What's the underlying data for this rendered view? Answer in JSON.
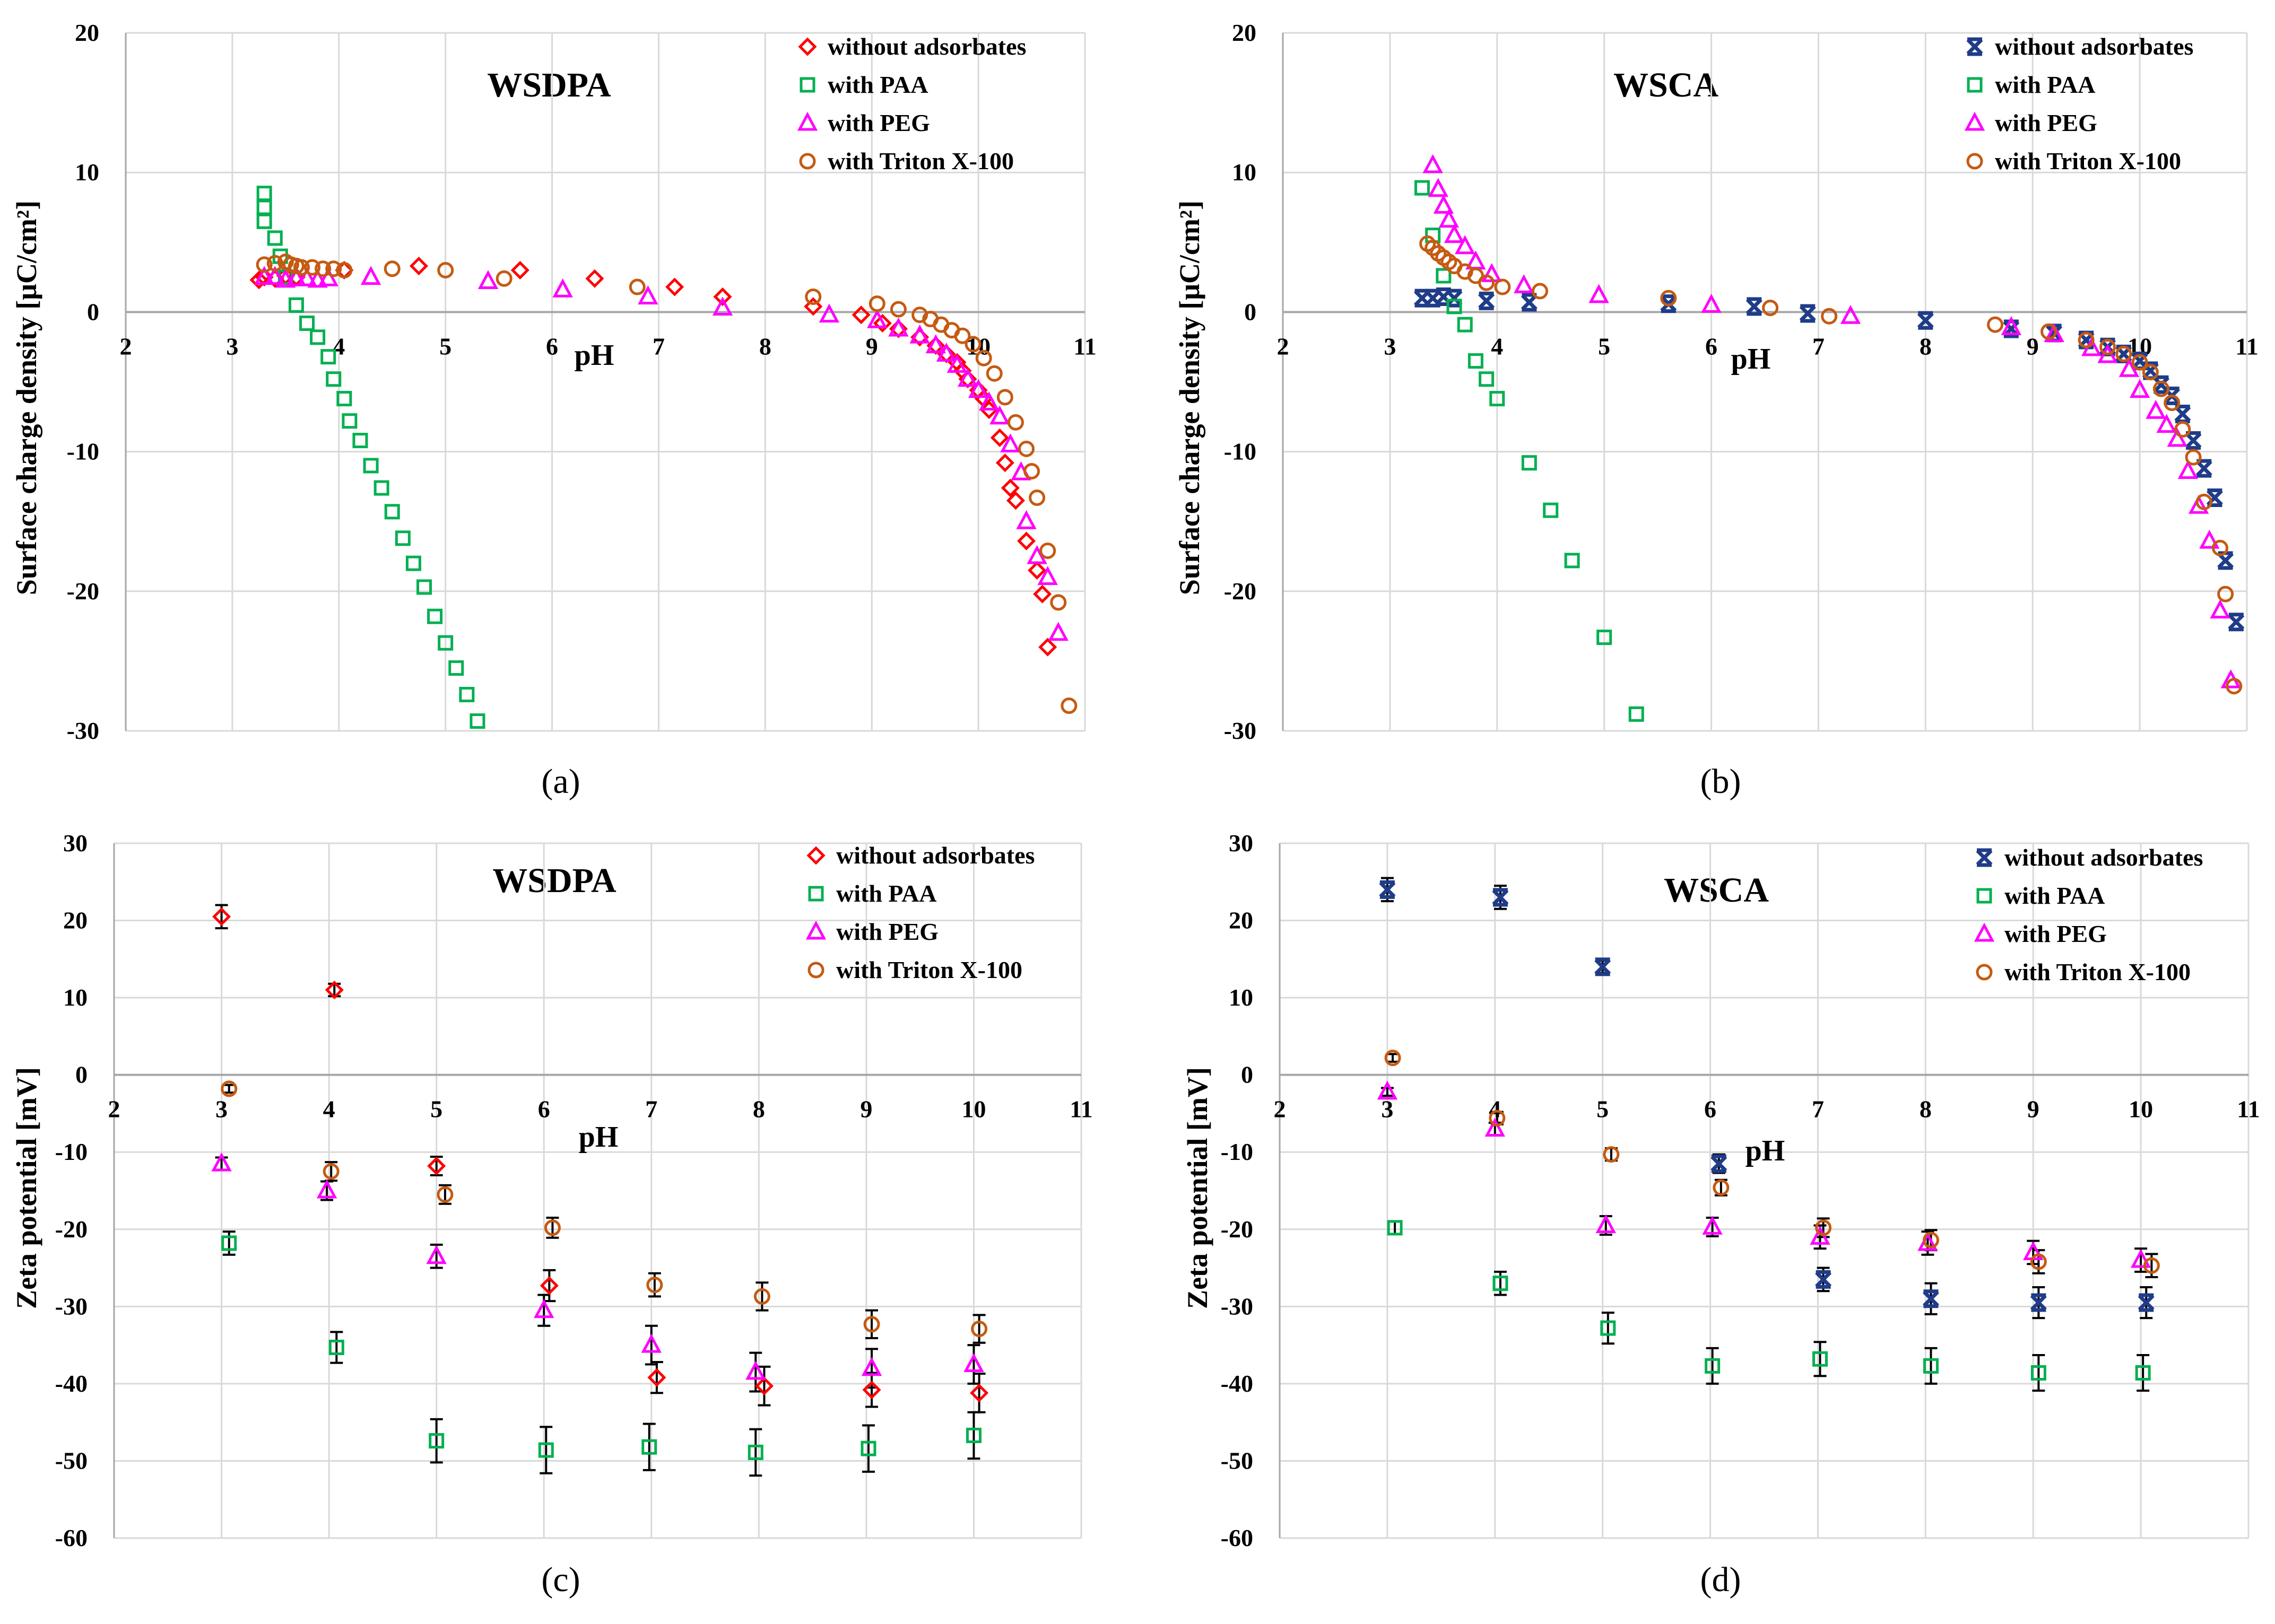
{
  "chart_data": [
    {
      "type": "scatter",
      "panel_label": "(a)",
      "title": "WSDPA",
      "xlabel": "pH",
      "ylabel": "Surface charge density [μC/cm²]",
      "xlim": [
        2,
        11
      ],
      "ylim": [
        -30,
        20
      ],
      "xticks": [
        2,
        3,
        4,
        5,
        6,
        7,
        8,
        9,
        10,
        11
      ],
      "yticks": [
        20,
        10,
        0,
        -10,
        -20,
        -30
      ],
      "grid": true,
      "legend_position": "top-right",
      "series": [
        {
          "name": "without adsorbates",
          "marker": "diamond",
          "color": "#ff0000",
          "x": [
            3.25,
            3.3,
            3.4,
            3.5,
            3.6,
            4.05,
            4.75,
            5.7,
            6.4,
            7.15,
            7.6,
            8.45,
            8.9,
            9.1,
            9.25,
            9.45,
            9.6,
            9.7,
            9.8,
            9.85,
            9.9,
            10.0,
            10.05,
            10.1,
            10.2,
            10.25,
            10.3,
            10.35,
            10.45,
            10.55,
            10.6,
            10.65
          ],
          "y": [
            2.3,
            2.5,
            2.4,
            2.6,
            2.5,
            3.0,
            3.3,
            3.0,
            2.4,
            1.8,
            1.1,
            0.4,
            -0.2,
            -0.8,
            -1.2,
            -1.8,
            -2.4,
            -3.0,
            -3.6,
            -4.2,
            -4.8,
            -5.6,
            -6.2,
            -7.0,
            -9.0,
            -10.8,
            -12.6,
            -13.5,
            -16.4,
            -18.5,
            -20.2,
            -24.0
          ]
        },
        {
          "name": "with PAA",
          "marker": "square",
          "color": "#00b050",
          "x": [
            3.3,
            3.3,
            3.3,
            3.4,
            3.45,
            3.5,
            3.6,
            3.7,
            3.8,
            3.9,
            3.95,
            4.05,
            4.1,
            4.2,
            4.3,
            4.4,
            4.5,
            4.6,
            4.7,
            4.8,
            4.9,
            5.0,
            5.1,
            5.2,
            5.3
          ],
          "y": [
            8.5,
            7.5,
            6.5,
            5.3,
            4.0,
            2.5,
            0.5,
            -0.8,
            -1.8,
            -3.2,
            -4.8,
            -6.2,
            -7.8,
            -9.2,
            -11.0,
            -12.6,
            -14.3,
            -16.2,
            -18.0,
            -19.7,
            -21.8,
            -23.7,
            -25.5,
            -27.4,
            -29.3
          ]
        },
        {
          "name": "with PEG",
          "marker": "triangle",
          "color": "#ff00ff",
          "x": [
            3.3,
            3.4,
            3.5,
            3.6,
            3.7,
            3.8,
            3.9,
            4.3,
            5.4,
            6.1,
            6.9,
            7.6,
            8.6,
            9.05,
            9.25,
            9.45,
            9.6,
            9.7,
            9.8,
            9.9,
            10.0,
            10.1,
            10.2,
            10.3,
            10.4,
            10.45,
            10.55,
            10.65,
            10.75
          ],
          "y": [
            2.5,
            2.5,
            2.3,
            2.4,
            2.4,
            2.3,
            2.4,
            2.5,
            2.2,
            1.6,
            1.1,
            0.3,
            -0.2,
            -0.6,
            -1.2,
            -1.7,
            -2.4,
            -3.0,
            -3.8,
            -4.8,
            -5.6,
            -6.5,
            -7.5,
            -9.5,
            -11.5,
            -15.0,
            -17.5,
            -19.0,
            -23.0
          ]
        },
        {
          "name": "with Triton X-100",
          "marker": "circle",
          "color": "#c55a11",
          "x": [
            3.3,
            3.4,
            3.5,
            3.55,
            3.6,
            3.65,
            3.75,
            3.85,
            3.95,
            4.05,
            4.5,
            5.0,
            5.55,
            6.8,
            8.45,
            9.05,
            9.25,
            9.45,
            9.55,
            9.65,
            9.75,
            9.85,
            9.95,
            10.05,
            10.15,
            10.25,
            10.35,
            10.45,
            10.5,
            10.55,
            10.65,
            10.75,
            10.85
          ],
          "y": [
            3.4,
            3.5,
            3.6,
            3.4,
            3.3,
            3.2,
            3.2,
            3.1,
            3.1,
            3.0,
            3.1,
            3.0,
            2.4,
            1.8,
            1.1,
            0.6,
            0.2,
            -0.2,
            -0.5,
            -0.9,
            -1.3,
            -1.7,
            -2.3,
            -3.3,
            -4.4,
            -6.1,
            -7.9,
            -9.8,
            -11.4,
            -13.3,
            -17.1,
            -20.8,
            -28.2
          ]
        }
      ]
    },
    {
      "type": "scatter",
      "panel_label": "(b)",
      "title": "WSCA",
      "xlabel": "pH",
      "ylabel": "Surface charge density [μC/cm²]",
      "xlim": [
        2,
        11
      ],
      "ylim": [
        -30,
        20
      ],
      "xticks": [
        2,
        3,
        4,
        5,
        6,
        7,
        8,
        9,
        10,
        11
      ],
      "yticks": [
        20,
        10,
        0,
        -10,
        -20,
        -30
      ],
      "grid": true,
      "legend_position": "top-right",
      "series": [
        {
          "name": "without adsorbates",
          "marker": "x",
          "color": "#1f3c88",
          "x": [
            3.3,
            3.4,
            3.5,
            3.6,
            3.9,
            4.3,
            5.6,
            6.4,
            6.9,
            8.0,
            8.8,
            9.2,
            9.5,
            9.7,
            9.85,
            10.0,
            10.1,
            10.2,
            10.3,
            10.4,
            10.5,
            10.6,
            10.7,
            10.8,
            10.9
          ],
          "y": [
            1.0,
            1.0,
            1.1,
            1.0,
            0.8,
            0.7,
            0.6,
            0.4,
            -0.1,
            -0.6,
            -1.2,
            -1.5,
            -2.0,
            -2.5,
            -3.0,
            -3.5,
            -4.2,
            -5.2,
            -6.0,
            -7.3,
            -9.2,
            -11.2,
            -13.3,
            -17.8,
            -22.2
          ]
        },
        {
          "name": "with PAA",
          "marker": "square",
          "color": "#00b050",
          "x": [
            3.3,
            3.4,
            3.5,
            3.6,
            3.7,
            3.8,
            3.9,
            4.0,
            4.3,
            4.5,
            4.7,
            5.0,
            5.3
          ],
          "y": [
            8.9,
            5.5,
            2.6,
            0.4,
            -0.9,
            -3.5,
            -4.8,
            -6.2,
            -10.8,
            -14.2,
            -17.8,
            -23.3,
            -28.8
          ]
        },
        {
          "name": "with PEG",
          "marker": "triangle",
          "color": "#ff00ff",
          "x": [
            3.4,
            3.45,
            3.5,
            3.55,
            3.6,
            3.7,
            3.8,
            3.95,
            4.25,
            4.95,
            6.0,
            7.3,
            8.8,
            9.2,
            9.55,
            9.7,
            9.9,
            10.0,
            10.15,
            10.25,
            10.35,
            10.45,
            10.55,
            10.65,
            10.75,
            10.85
          ],
          "y": [
            10.5,
            8.8,
            7.6,
            6.6,
            5.5,
            4.7,
            3.6,
            2.7,
            1.9,
            1.2,
            0.5,
            -0.3,
            -1.1,
            -1.6,
            -2.6,
            -3.1,
            -4.1,
            -5.6,
            -7.1,
            -8.1,
            -9.1,
            -11.4,
            -13.9,
            -16.4,
            -21.4,
            -26.4
          ]
        },
        {
          "name": "with Triton X-100",
          "marker": "circle",
          "color": "#c55a11",
          "x": [
            3.35,
            3.4,
            3.45,
            3.5,
            3.55,
            3.6,
            3.7,
            3.8,
            3.9,
            4.05,
            4.4,
            5.6,
            6.55,
            7.1,
            8.65,
            9.15,
            9.5,
            9.7,
            9.85,
            10.0,
            10.1,
            10.2,
            10.3,
            10.4,
            10.5,
            10.6,
            10.75,
            10.8,
            10.88
          ],
          "y": [
            4.9,
            4.6,
            4.2,
            3.9,
            3.6,
            3.3,
            2.9,
            2.6,
            2.1,
            1.8,
            1.5,
            1.0,
            0.3,
            -0.3,
            -0.9,
            -1.4,
            -2.0,
            -2.5,
            -3.0,
            -3.6,
            -4.3,
            -5.5,
            -6.5,
            -8.4,
            -10.4,
            -13.6,
            -16.9,
            -20.2,
            -26.8
          ]
        }
      ]
    },
    {
      "type": "scatter",
      "panel_label": "(c)",
      "title": "WSDPA",
      "xlabel": "pH",
      "ylabel": "Zeta potential [mV]",
      "xlim": [
        2,
        11
      ],
      "ylim": [
        -60,
        30
      ],
      "xticks": [
        2,
        3,
        4,
        5,
        6,
        7,
        8,
        9,
        10,
        11
      ],
      "yticks": [
        30,
        20,
        10,
        0,
        -10,
        -20,
        -30,
        -40,
        -50,
        -60
      ],
      "grid": true,
      "legend_position": "top-right",
      "error_bars": true,
      "series": [
        {
          "name": "without adsorbates",
          "marker": "diamond",
          "color": "#ff0000",
          "x": [
            3.0,
            4.05,
            5.0,
            6.05,
            7.05,
            8.05,
            9.05,
            10.05
          ],
          "y": [
            20.5,
            11.0,
            -11.8,
            -27.3,
            -39.2,
            -40.3,
            -40.8,
            -41.2
          ],
          "err": [
            1.5,
            0.8,
            1.2,
            2.0,
            2.0,
            2.5,
            2.2,
            2.5
          ]
        },
        {
          "name": "with PAA",
          "marker": "square",
          "color": "#00b050",
          "x": [
            3.07,
            4.07,
            5.0,
            6.02,
            6.98,
            7.97,
            9.02,
            10.0
          ],
          "y": [
            -21.8,
            -35.3,
            -47.4,
            -48.6,
            -48.2,
            -48.9,
            -48.4,
            -46.7
          ],
          "err": [
            1.5,
            2.0,
            2.8,
            3.0,
            3.0,
            3.0,
            3.0,
            3.0
          ]
        },
        {
          "name": "with PEG",
          "marker": "triangle",
          "color": "#ff00ff",
          "x": [
            3.0,
            3.98,
            5.0,
            6.0,
            7.0,
            7.97,
            9.05,
            10.0
          ],
          "y": [
            -11.5,
            -15.0,
            -23.5,
            -30.5,
            -35.0,
            -38.5,
            -38.0,
            -37.5
          ],
          "err": [
            0.8,
            1.2,
            1.5,
            2.0,
            2.5,
            2.5,
            2.5,
            2.5
          ]
        },
        {
          "name": "with Triton X-100",
          "marker": "circle",
          "color": "#c55a11",
          "x": [
            3.07,
            4.02,
            5.08,
            6.08,
            7.03,
            8.03,
            9.05,
            10.05
          ],
          "y": [
            -1.8,
            -12.5,
            -15.5,
            -19.8,
            -27.2,
            -28.7,
            -32.3,
            -32.9
          ],
          "err": [
            0.5,
            1.2,
            1.2,
            1.3,
            1.5,
            1.8,
            1.8,
            1.8
          ]
        }
      ]
    },
    {
      "type": "scatter",
      "panel_label": "(d)",
      "title": "WSCA",
      "xlabel": "pH",
      "ylabel": "Zeta potential [mV]",
      "xlim": [
        2,
        11
      ],
      "ylim": [
        -60,
        30
      ],
      "xticks": [
        2,
        3,
        4,
        5,
        6,
        7,
        8,
        9,
        10,
        11
      ],
      "yticks": [
        30,
        20,
        10,
        0,
        -10,
        -20,
        -30,
        -40,
        -50,
        -60
      ],
      "grid": true,
      "legend_position": "top-right",
      "error_bars": true,
      "series": [
        {
          "name": "without adsorbates",
          "marker": "x",
          "color": "#1f3c88",
          "x": [
            3.0,
            4.05,
            5.0,
            6.08,
            7.05,
            8.05,
            9.05,
            10.05
          ],
          "y": [
            24.0,
            23.0,
            14.0,
            -11.5,
            -26.5,
            -29.0,
            -29.5,
            -29.5
          ],
          "err": [
            1.5,
            1.5,
            0.8,
            1.2,
            1.5,
            2.0,
            2.0,
            2.0
          ]
        },
        {
          "name": "with PAA",
          "marker": "square",
          "color": "#00b050",
          "x": [
            3.07,
            4.05,
            5.05,
            6.02,
            7.02,
            8.05,
            9.05,
            10.02
          ],
          "y": [
            -19.8,
            -27.0,
            -32.8,
            -37.7,
            -36.8,
            -37.7,
            -38.6,
            -38.6
          ],
          "err": [
            0.8,
            1.5,
            2.0,
            2.3,
            2.2,
            2.3,
            2.3,
            2.3
          ]
        },
        {
          "name": "with PEG",
          "marker": "triangle",
          "color": "#ff00ff",
          "x": [
            3.0,
            4.0,
            5.03,
            6.02,
            7.02,
            8.02,
            9.0,
            10.0
          ],
          "y": [
            -2.2,
            -7.0,
            -19.5,
            -19.7,
            -21.0,
            -21.8,
            -23.0,
            -24.0
          ],
          "err": [
            0.5,
            0.8,
            1.2,
            1.2,
            1.5,
            1.5,
            1.5,
            1.5
          ]
        },
        {
          "name": "with Triton X-100",
          "marker": "circle",
          "color": "#c55a11",
          "x": [
            3.05,
            4.02,
            5.08,
            6.1,
            7.05,
            8.05,
            9.05,
            10.1
          ],
          "y": [
            2.2,
            -5.6,
            -10.3,
            -14.6,
            -19.8,
            -21.4,
            -24.2,
            -24.7
          ],
          "err": [
            0.5,
            0.8,
            0.8,
            1.0,
            1.2,
            1.3,
            1.5,
            1.5
          ]
        }
      ]
    }
  ]
}
